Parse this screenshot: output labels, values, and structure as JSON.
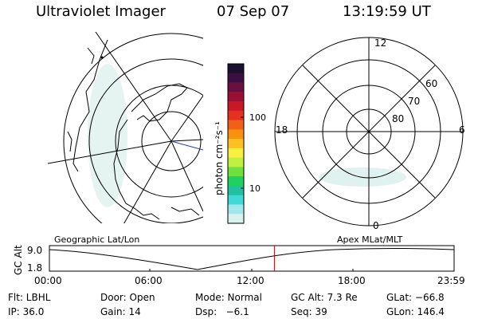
{
  "header": {
    "instrument": "Ultraviolet Imager",
    "date": "07 Sep 07",
    "time": "13:19:59 UT"
  },
  "colorbar": {
    "unit_label": "photon cm⁻²s⁻¹",
    "ticks": [
      "100",
      "10"
    ],
    "colors_top_to_bottom": [
      "#1a1030",
      "#3a1040",
      "#6a1040",
      "#9a1035",
      "#c81828",
      "#e63020",
      "#f06018",
      "#f89010",
      "#ffc020",
      "#f8f040",
      "#c0f040",
      "#70e040",
      "#20d060",
      "#20c0a0",
      "#40d8d8",
      "#a0e8ec",
      "#d8f0f0"
    ]
  },
  "polar_plot": {
    "mlt_labels": [
      "12",
      "18",
      "6",
      "0"
    ],
    "mlat_labels": [
      "60",
      "70",
      "80"
    ]
  },
  "panel_labels": {
    "left": "Geographic Lat/Lon",
    "right": "Apex MLat/MLT"
  },
  "timeline": {
    "y_axis_title": "GC Alt",
    "y_ticks": [
      "9.0",
      "1.8"
    ],
    "x_ticks": [
      "00:00",
      "06:00",
      "12:00",
      "18:00",
      "23:59"
    ],
    "marker_time": "13:19:59",
    "marker_color": "#cc0000"
  },
  "info": {
    "row1": [
      "Flt: LBHL",
      "Door: Open",
      "Mode: Normal",
      "GC Alt: 7.3 Re",
      "GLat: −66.8"
    ],
    "row2": [
      "IP: 36.0",
      "Gain: 14",
      "Dsp:   −6.1",
      "Seq: 39",
      "GLon: 146.4"
    ]
  }
}
